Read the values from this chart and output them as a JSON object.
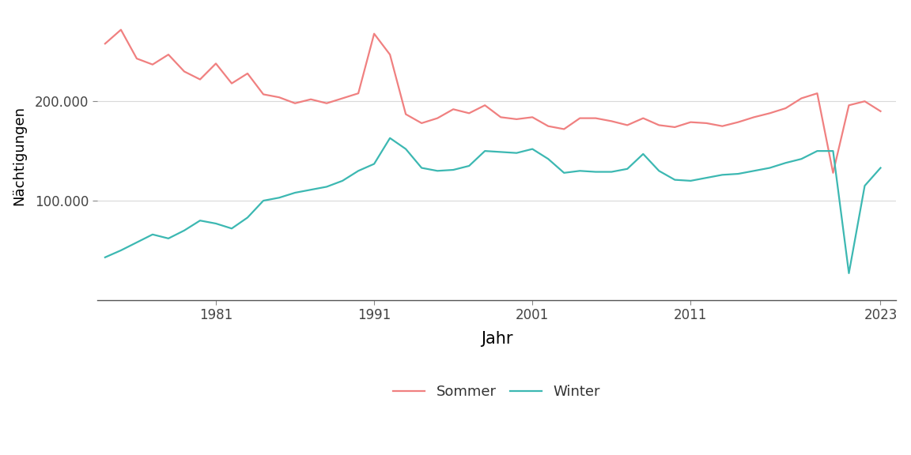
{
  "title": "",
  "xlabel": "Jahr",
  "ylabel": "Nächtigungen",
  "background_color": "#ffffff",
  "plot_background": "#ffffff",
  "grid_color": "#d9d9d9",
  "sommer_color": "#F08080",
  "winter_color": "#3CB8B2",
  "legend_labels": [
    "Sommer",
    "Winter"
  ],
  "years": [
    1974,
    1975,
    1976,
    1977,
    1978,
    1979,
    1980,
    1981,
    1982,
    1983,
    1984,
    1985,
    1986,
    1987,
    1988,
    1989,
    1990,
    1991,
    1992,
    1993,
    1994,
    1995,
    1996,
    1997,
    1998,
    1999,
    2000,
    2001,
    2002,
    2003,
    2004,
    2005,
    2006,
    2007,
    2008,
    2009,
    2010,
    2011,
    2012,
    2013,
    2014,
    2015,
    2016,
    2017,
    2018,
    2019,
    2020,
    2021,
    2022,
    2023
  ],
  "sommer": [
    258000,
    272000,
    243000,
    237000,
    247000,
    230000,
    222000,
    238000,
    218000,
    228000,
    207000,
    204000,
    198000,
    202000,
    198000,
    203000,
    208000,
    268000,
    247000,
    187000,
    178000,
    183000,
    192000,
    188000,
    196000,
    184000,
    182000,
    184000,
    175000,
    172000,
    183000,
    183000,
    180000,
    176000,
    183000,
    176000,
    174000,
    179000,
    178000,
    175000,
    179000,
    184000,
    188000,
    193000,
    203000,
    208000,
    128000,
    196000,
    200000,
    190000
  ],
  "winter": [
    43000,
    50000,
    58000,
    66000,
    62000,
    70000,
    80000,
    77000,
    72000,
    83000,
    100000,
    103000,
    108000,
    111000,
    114000,
    120000,
    130000,
    137000,
    163000,
    152000,
    133000,
    130000,
    131000,
    135000,
    150000,
    149000,
    148000,
    152000,
    142000,
    128000,
    130000,
    129000,
    129000,
    132000,
    147000,
    130000,
    121000,
    120000,
    123000,
    126000,
    127000,
    130000,
    133000,
    138000,
    142000,
    150000,
    150000,
    27000,
    115000,
    133000
  ],
  "xticks": [
    1981,
    1991,
    2001,
    2011,
    2023
  ],
  "yticks": [
    100000,
    200000
  ],
  "ylim": [
    0,
    290000
  ],
  "xlim_min": 1973.5,
  "xlim_max": 2024.0
}
